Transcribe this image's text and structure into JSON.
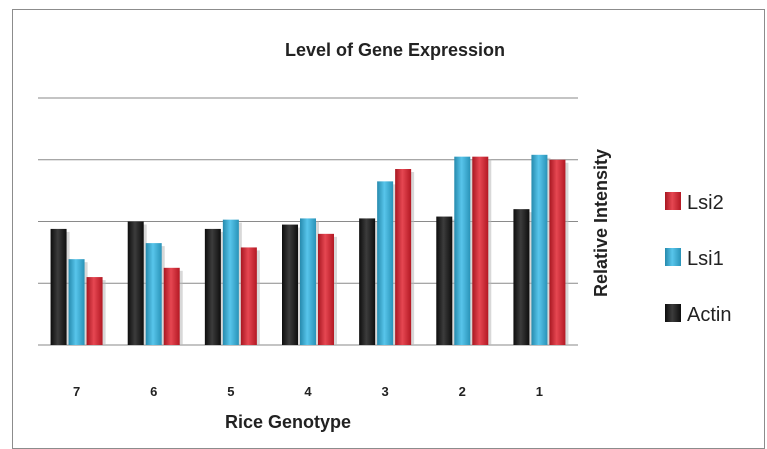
{
  "chart_data": {
    "type": "bar",
    "title": "Level of Gene Expression",
    "xlabel": "Rice Genotype",
    "ylabel": "Relative Intensity",
    "categories": [
      "7",
      "6",
      "5",
      "4",
      "3",
      "2",
      "1"
    ],
    "series": [
      {
        "name": "Actin",
        "values": [
          1.88,
          2.0,
          1.88,
          1.95,
          2.05,
          2.08,
          2.2
        ],
        "color": "#111111"
      },
      {
        "name": "Lsi1",
        "values": [
          1.39,
          1.65,
          2.03,
          2.05,
          2.65,
          3.05,
          3.08
        ],
        "color": "#33b8e6"
      },
      {
        "name": "Lsi2",
        "values": [
          1.1,
          1.25,
          1.58,
          1.8,
          2.85,
          3.05,
          3.0
        ],
        "color": "#e01e2c"
      }
    ],
    "ylim": [
      0,
      4
    ],
    "yticks_shown": false,
    "grid": true,
    "legend_position": "right",
    "legend_order": [
      "Lsi2",
      "Lsi1",
      "Actin"
    ]
  }
}
